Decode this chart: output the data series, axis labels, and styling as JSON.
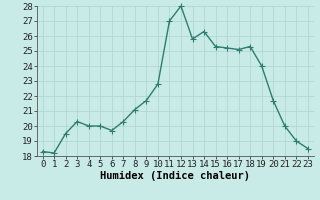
{
  "x": [
    0,
    1,
    2,
    3,
    4,
    5,
    6,
    7,
    8,
    9,
    10,
    11,
    12,
    13,
    14,
    15,
    16,
    17,
    18,
    19,
    20,
    21,
    22,
    23
  ],
  "y": [
    18.3,
    18.2,
    19.5,
    20.3,
    20.0,
    20.0,
    19.7,
    20.3,
    21.1,
    21.7,
    22.8,
    27.0,
    28.0,
    25.8,
    26.3,
    25.3,
    25.2,
    25.1,
    25.3,
    24.0,
    21.7,
    20.0,
    19.0,
    18.5
  ],
  "line_color": "#2e7d6e",
  "marker": "+",
  "bg_color": "#c8ebe8",
  "grid_color": "#aad4d0",
  "xlabel": "Humidex (Indice chaleur)",
  "ylim": [
    18,
    28
  ],
  "yticks": [
    18,
    19,
    20,
    21,
    22,
    23,
    24,
    25,
    26,
    27,
    28
  ],
  "xlabel_fontsize": 7.5,
  "tick_fontsize": 6.5,
  "line_width": 1.0,
  "marker_size": 4
}
